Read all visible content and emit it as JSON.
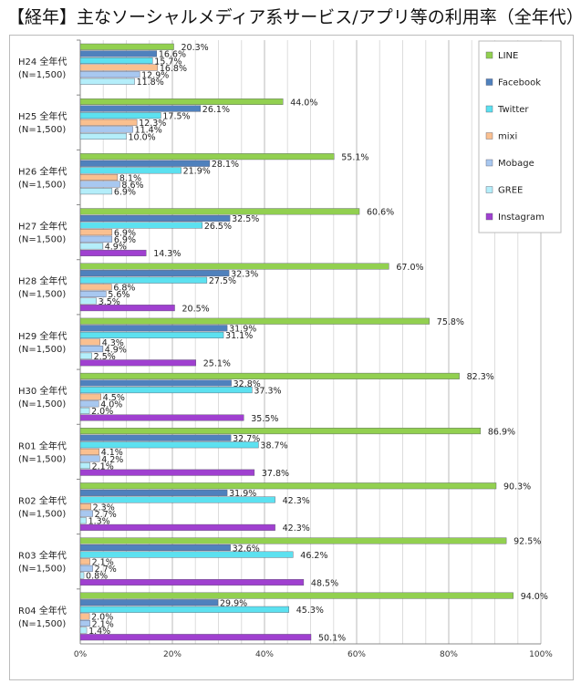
{
  "chart_data": {
    "type": "bar",
    "orientation": "horizontal",
    "title": "【経年】主なソーシャルメディア系サービス/アプリ等の利用率（全年代）",
    "categories": [
      [
        "H24 全年代",
        "(N=1,500)"
      ],
      [
        "H25 全年代",
        "(N=1,500)"
      ],
      [
        "H26 全年代",
        "(N=1,500)"
      ],
      [
        "H27 全年代",
        "(N=1,500)"
      ],
      [
        "H28 全年代",
        "(N=1,500)"
      ],
      [
        "H29 全年代",
        "(N=1,500)"
      ],
      [
        "H30 全年代",
        "(N=1,500)"
      ],
      [
        "R01 全年代",
        "(N=1,500)"
      ],
      [
        "R02 全年代",
        "(N=1,500)"
      ],
      [
        "R03 全年代",
        "(N=1,500)"
      ],
      [
        "R04 全年代",
        "(N=1,500)"
      ]
    ],
    "xlim": [
      0,
      100
    ],
    "xticks": [
      "0%",
      "20%",
      "40%",
      "60%",
      "80%",
      "100%"
    ],
    "grid": true,
    "legend_position": "top-right",
    "series": [
      {
        "name": "LINE",
        "color": "#92d050",
        "values": [
          20.3,
          44.0,
          55.1,
          60.6,
          67.0,
          75.8,
          82.3,
          86.9,
          90.3,
          92.5,
          94.0
        ]
      },
      {
        "name": "Facebook",
        "color": "#4f81bd",
        "values": [
          16.6,
          26.1,
          28.1,
          32.5,
          32.3,
          31.9,
          32.8,
          32.7,
          31.9,
          32.6,
          29.9
        ]
      },
      {
        "name": "Twitter",
        "color": "#5ce1f0",
        "values": [
          15.7,
          17.5,
          21.9,
          26.5,
          27.5,
          31.1,
          37.3,
          38.7,
          42.3,
          46.2,
          45.3
        ]
      },
      {
        "name": "mixi",
        "color": "#fac090",
        "values": [
          16.8,
          12.3,
          8.1,
          6.9,
          6.8,
          4.3,
          4.5,
          4.1,
          2.3,
          2.1,
          2.0
        ]
      },
      {
        "name": "Mobage",
        "color": "#a8c8f0",
        "values": [
          12.9,
          11.4,
          8.6,
          6.9,
          5.6,
          4.9,
          4.0,
          4.2,
          2.7,
          2.7,
          2.1
        ]
      },
      {
        "name": "GREE",
        "color": "#b4eefa",
        "values": [
          11.8,
          10.0,
          6.9,
          4.9,
          3.5,
          2.5,
          2.0,
          2.1,
          1.3,
          0.8,
          1.4
        ]
      },
      {
        "name": "Instagram",
        "color": "#a040d0",
        "values": [
          null,
          null,
          null,
          14.3,
          20.5,
          25.1,
          35.5,
          37.8,
          42.3,
          48.5,
          50.1
        ]
      }
    ]
  }
}
